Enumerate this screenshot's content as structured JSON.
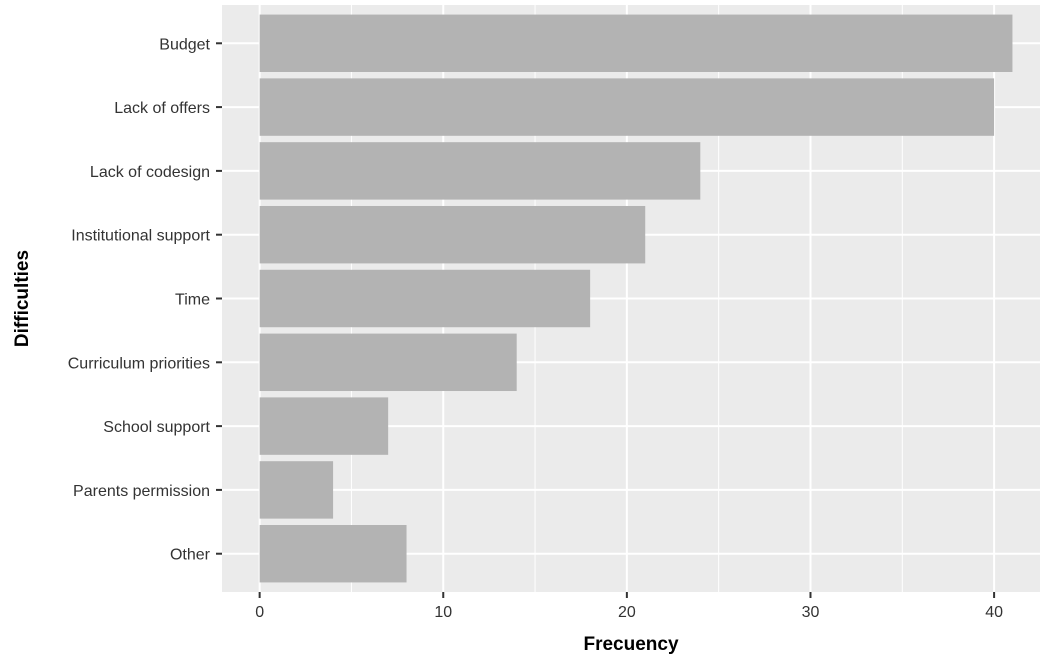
{
  "chart_data": {
    "type": "bar",
    "orientation": "horizontal",
    "xlabel": "Frecuency",
    "ylabel": "Difficulties",
    "categories": [
      "Budget",
      "Lack of offers",
      "Lack of codesign",
      "Institutional support",
      "Time",
      "Curriculum priorities",
      "School support",
      "Parents permission",
      "Other"
    ],
    "values": [
      41,
      40,
      24,
      21,
      18,
      14,
      7,
      4,
      8
    ],
    "xticks": [
      "0",
      "10",
      "20",
      "30",
      "40"
    ],
    "xlim": [
      -2.05,
      42.5
    ],
    "grid": true,
    "colors": {
      "bar": "#b3b3b3",
      "panel": "#ebebeb",
      "grid": "#ffffff",
      "tick": "#333333"
    }
  }
}
